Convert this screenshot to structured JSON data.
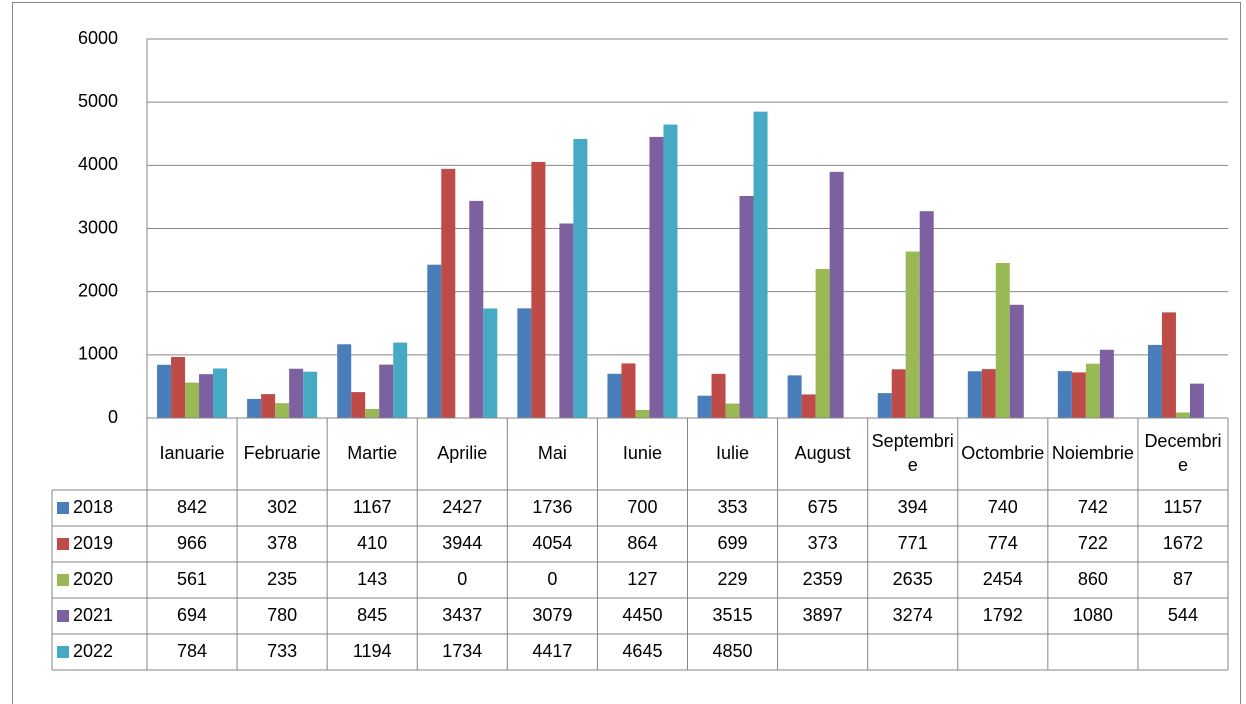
{
  "chart_data": {
    "type": "bar",
    "categories": [
      "Ianuarie",
      "Februarie",
      "Martie",
      "Aprilie",
      "Mai",
      "Iunie",
      "Iulie",
      "August",
      "Septembrie",
      "Octombrie",
      "Noiembrie",
      "Decembrie"
    ],
    "series": [
      {
        "name": "2018",
        "color": "#4a7ebb",
        "values": [
          842,
          302,
          1167,
          2427,
          1736,
          700,
          353,
          675,
          394,
          740,
          742,
          1157
        ]
      },
      {
        "name": "2019",
        "color": "#be4b48",
        "values": [
          966,
          378,
          410,
          3944,
          4054,
          864,
          699,
          373,
          771,
          774,
          722,
          1672
        ]
      },
      {
        "name": "2020",
        "color": "#98b954",
        "values": [
          561,
          235,
          143,
          0,
          0,
          127,
          229,
          2359,
          2635,
          2454,
          860,
          87
        ]
      },
      {
        "name": "2021",
        "color": "#7d60a0",
        "values": [
          694,
          780,
          845,
          3437,
          3079,
          4450,
          3515,
          3897,
          3274,
          1792,
          1080,
          544
        ]
      },
      {
        "name": "2022",
        "color": "#46aac5",
        "values": [
          784,
          733,
          1194,
          1734,
          4417,
          4645,
          4850,
          null,
          null,
          null,
          null,
          null
        ]
      }
    ],
    "ylim": [
      0,
      6000
    ],
    "yticks": [
      0,
      1000,
      2000,
      3000,
      4000,
      5000,
      6000
    ],
    "grid": true,
    "data_table": true
  }
}
